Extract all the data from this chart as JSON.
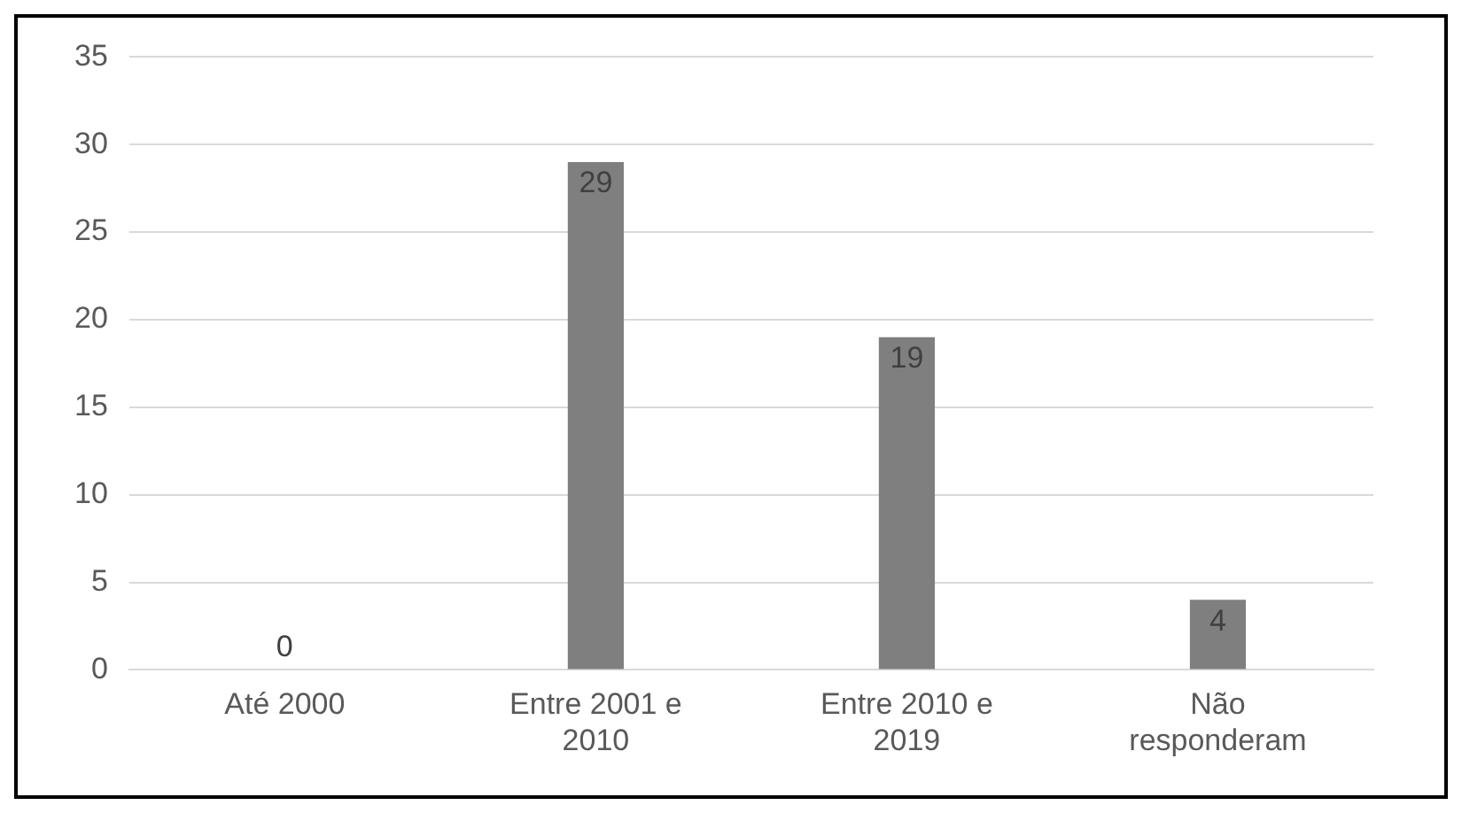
{
  "chart_data": {
    "type": "bar",
    "categories": [
      "Até 2000",
      "Entre 2001 e 2010",
      "Entre 2010 e 2019",
      "Não responderam"
    ],
    "values": [
      0,
      29,
      19,
      4
    ],
    "color": "#7f7f7f",
    "ylim": [
      0,
      35
    ],
    "yticks": [
      0,
      5,
      10,
      15,
      20,
      25,
      30,
      35
    ],
    "grid": "y",
    "data_labels": true
  }
}
